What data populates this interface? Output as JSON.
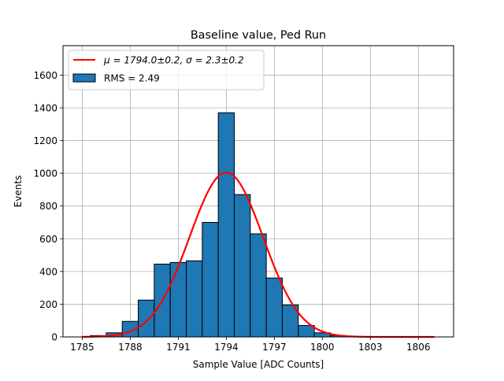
{
  "chart_data": {
    "type": "bar",
    "title": "Baseline value, Ped Run",
    "xlabel": "Sample Value [ADC Counts]",
    "ylabel": "Events",
    "xlim": [
      1783.8,
      1808.2
    ],
    "ylim": [
      0,
      1780
    ],
    "xticks": [
      1785,
      1788,
      1791,
      1794,
      1797,
      1800,
      1803,
      1806
    ],
    "yticks": [
      0,
      200,
      400,
      600,
      800,
      1000,
      1200,
      1400,
      1600
    ],
    "grid": true,
    "legend_position": "upper-left",
    "bins": [
      {
        "x0": 1785.5,
        "x1": 1786.5,
        "count": 8
      },
      {
        "x0": 1786.5,
        "x1": 1787.5,
        "count": 25
      },
      {
        "x0": 1787.5,
        "x1": 1788.5,
        "count": 95
      },
      {
        "x0": 1788.5,
        "x1": 1789.5,
        "count": 225
      },
      {
        "x0": 1789.5,
        "x1": 1790.5,
        "count": 445
      },
      {
        "x0": 1790.5,
        "x1": 1791.5,
        "count": 455
      },
      {
        "x0": 1791.5,
        "x1": 1792.5,
        "count": 465
      },
      {
        "x0": 1792.5,
        "x1": 1793.5,
        "count": 700
      },
      {
        "x0": 1793.5,
        "x1": 1794.5,
        "count": 1370
      },
      {
        "x0": 1794.5,
        "x1": 1795.5,
        "count": 870
      },
      {
        "x0": 1795.5,
        "x1": 1796.5,
        "count": 630
      },
      {
        "x0": 1796.5,
        "x1": 1797.5,
        "count": 360
      },
      {
        "x0": 1797.5,
        "x1": 1798.5,
        "count": 195
      },
      {
        "x0": 1798.5,
        "x1": 1799.5,
        "count": 70
      },
      {
        "x0": 1799.5,
        "x1": 1800.5,
        "count": 25
      },
      {
        "x0": 1800.5,
        "x1": 1801.5,
        "count": 8
      }
    ],
    "fit": {
      "mu": 1794.0,
      "sigma": 2.3,
      "amplitude": 1005,
      "x_range": [
        1785,
        1807
      ]
    },
    "series": [
      {
        "name": "μ = 1794.0±0.2, σ = 2.3±0.2",
        "type": "line",
        "color": "#ff0000"
      },
      {
        "name": "RMS = 2.49",
        "type": "histogram",
        "color": "#1f77b4"
      }
    ]
  }
}
